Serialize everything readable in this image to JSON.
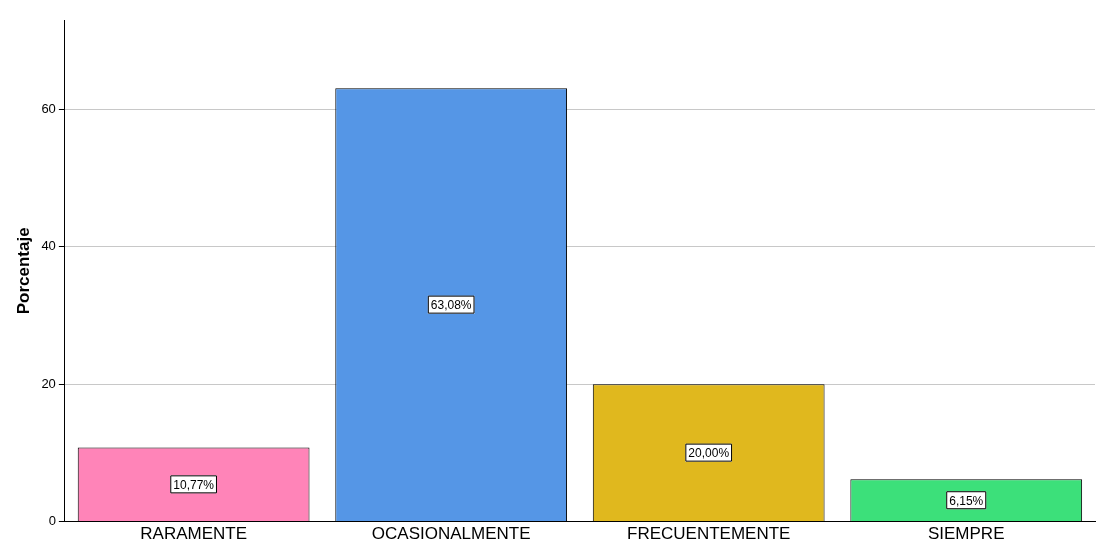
{
  "chart_data": {
    "type": "bar",
    "ylabel": "Porcentaje",
    "categories": [
      "RARAMENTE",
      "OCASIONALMENTE",
      "FRECUENTEMENTE",
      "SIEMPRE"
    ],
    "values": [
      10.77,
      63.08,
      20.0,
      6.15
    ],
    "colors": [
      "#ff84b8",
      "#5596e6",
      "#e0b81e",
      "#3ce07a"
    ],
    "value_labels": [
      "10,77%",
      "63,08%",
      "20,00%",
      "6,15%"
    ],
    "ylim": [
      0,
      73
    ],
    "yticks": [
      0,
      20,
      40,
      60
    ],
    "grid": "y",
    "legend": false
  }
}
